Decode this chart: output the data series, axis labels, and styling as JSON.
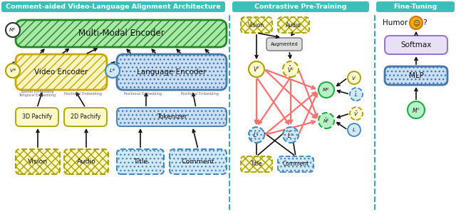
{
  "fig_width": 6.4,
  "fig_height": 3.04,
  "dpi": 100,
  "bg_color": "#ffffff",
  "header_color": "#3bbfb8",
  "section1_title": "Comment-aided Video-Language Alignment Architecture",
  "section2_title": "Contrastive Pre-Training",
  "section3_title": "Fine-Tuning",
  "green_hatch_fill": "#a8e8a8",
  "green_hatch_edge": "#228822",
  "yellow_hatch_fill": "#faf5c0",
  "yellow_hatch_edge": "#c8a800",
  "blue_hatch_fill": "#c8dff5",
  "blue_hatch_edge": "#4477aa",
  "yellow_plain_fill": "#fef9c8",
  "yellow_plain_edge": "#aaa000",
  "blue_plain_fill": "#d0e8f8",
  "blue_plain_edge": "#4488bb",
  "gray_fill": "#dedede",
  "gray_edge": "#888888",
  "purple_fill": "#e8e0f4",
  "purple_edge": "#9977cc",
  "green_circle_fill": "#b8f0c8",
  "green_circle_edge": "#22aa44",
  "white_circle_fill": "#ffffff",
  "arrow_black": "#111111",
  "arrow_red": "#ff7070",
  "divider_color": "#33aacc"
}
